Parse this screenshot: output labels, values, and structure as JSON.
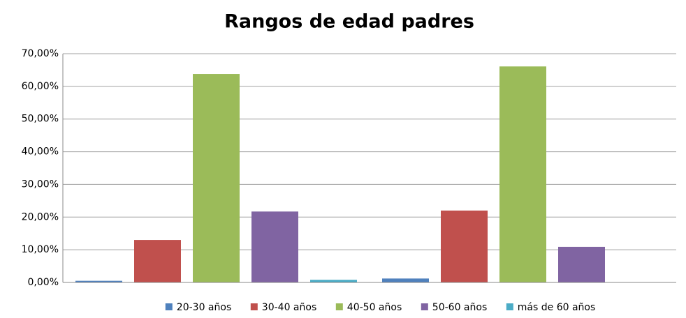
{
  "chart_data": {
    "type": "bar",
    "title": "Rangos de edad padres",
    "categories": [
      null,
      null
    ],
    "series": [
      {
        "name": "20-30 años",
        "color": "#4f81bd",
        "values": [
          0.5,
          1.2
        ]
      },
      {
        "name": "30-40 años",
        "color": "#c0504d",
        "values": [
          13.0,
          22.0
        ]
      },
      {
        "name": "40-50 años",
        "color": "#9bbb59",
        "values": [
          63.8,
          66.1
        ]
      },
      {
        "name": "50-60 años",
        "color": "#8064a2",
        "values": [
          21.7,
          10.9
        ]
      },
      {
        "name": "más de 60 años",
        "color": "#4bacc6",
        "values": [
          0.8,
          0
        ]
      }
    ],
    "ylim": [
      0,
      70
    ],
    "yticks": [
      {
        "value": 0,
        "label": "0,00%"
      },
      {
        "value": 10,
        "label": "10,00%"
      },
      {
        "value": 20,
        "label": "20,00%"
      },
      {
        "value": 30,
        "label": "30,00%"
      },
      {
        "value": 40,
        "label": "40,00%"
      },
      {
        "value": 50,
        "label": "50,00%"
      },
      {
        "value": 60,
        "label": "60,00%"
      },
      {
        "value": 70,
        "label": "70,00%"
      }
    ],
    "grid": true,
    "legend": "bottom"
  }
}
